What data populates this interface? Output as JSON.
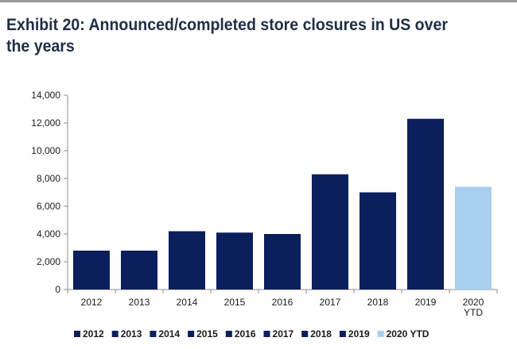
{
  "title": "Exhibit 20: Announced/completed store closures in US over the years",
  "colors": {
    "dark": "#0b1f5c",
    "light": "#a8cfee",
    "axis": "#8c8c8c"
  },
  "chart_data": {
    "type": "bar",
    "categories": [
      "2012",
      "2013",
      "2014",
      "2015",
      "2016",
      "2017",
      "2018",
      "2019",
      "2020 YTD"
    ],
    "category_lines": [
      [
        "2012"
      ],
      [
        "2013"
      ],
      [
        "2014"
      ],
      [
        "2015"
      ],
      [
        "2016"
      ],
      [
        "2017"
      ],
      [
        "2018"
      ],
      [
        "2019"
      ],
      [
        "2020",
        "YTD"
      ]
    ],
    "values": [
      2800,
      2800,
      4200,
      4100,
      4000,
      8300,
      7000,
      12300,
      7400
    ],
    "bar_colors": [
      "#0b1f5c",
      "#0b1f5c",
      "#0b1f5c",
      "#0b1f5c",
      "#0b1f5c",
      "#0b1f5c",
      "#0b1f5c",
      "#0b1f5c",
      "#a8cfee"
    ],
    "ylim": [
      0,
      14000
    ],
    "yticks": [
      0,
      2000,
      4000,
      6000,
      8000,
      10000,
      12000,
      14000
    ],
    "ytick_labels": [
      "0",
      "2,000",
      "4,000",
      "6,000",
      "8,000",
      "10,000",
      "12,000",
      "14,000"
    ],
    "grid": false,
    "legend_position": "bottom",
    "legend": [
      "2012",
      "2013",
      "2014",
      "2015",
      "2016",
      "2017",
      "2018",
      "2019",
      "2020 YTD"
    ]
  }
}
